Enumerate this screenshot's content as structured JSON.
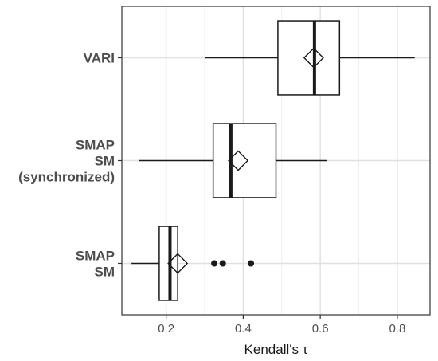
{
  "chart_data": {
    "type": "boxplot",
    "orientation": "horizontal",
    "xlabel": "Kendall's  τ",
    "xlim": [
      0.085,
      0.885
    ],
    "x_ticks": [
      0.2,
      0.4,
      0.6,
      0.8
    ],
    "x_tick_labels": [
      "0.2",
      "0.4",
      "0.6",
      "0.8"
    ],
    "grid": true,
    "categories": [
      {
        "label_lines": [
          "VARI"
        ],
        "whisker_low": 0.3,
        "q1": 0.49,
        "median": 0.585,
        "q3": 0.65,
        "whisker_high": 0.845,
        "mean": 0.583,
        "outliers": []
      },
      {
        "label_lines": [
          "SMAP",
          "SM",
          "(synchronized)"
        ],
        "whisker_low": 0.13,
        "q1": 0.322,
        "median": 0.368,
        "q3": 0.485,
        "whisker_high": 0.617,
        "mean": 0.387,
        "outliers": []
      },
      {
        "label_lines": [
          "SMAP",
          "SM"
        ],
        "whisker_low": 0.11,
        "q1": 0.182,
        "median": 0.21,
        "q3": 0.23,
        "whisker_high": 0.23,
        "mean": 0.23,
        "outliers": [
          0.325,
          0.347,
          0.42
        ]
      }
    ]
  }
}
